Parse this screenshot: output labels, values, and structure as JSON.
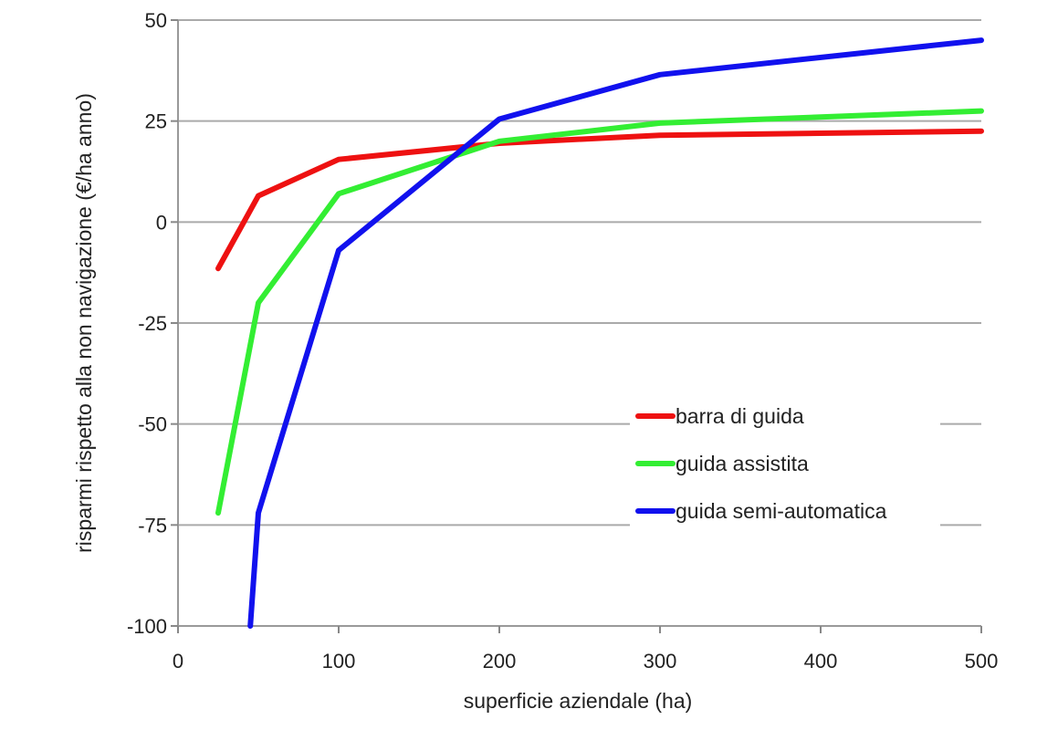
{
  "chart_data": {
    "type": "line",
    "xlabel": "superficie aziendale (ha)",
    "ylabel": "risparmi rispetto alla non navigazione (€/ha  anno)",
    "xlim": [
      0,
      500
    ],
    "ylim": [
      -100,
      50
    ],
    "xticks": [
      "0",
      "100",
      "200",
      "300",
      "400",
      "500"
    ],
    "yticks": [
      "50",
      "25",
      "0",
      "-25",
      "-50",
      "-75",
      "-100"
    ],
    "grid": "horizontal",
    "legend_position": "lower-right",
    "series": [
      {
        "name": "barra di guida",
        "color": "#ee1111",
        "points": [
          [
            25,
            -11.5
          ],
          [
            50,
            6.5
          ],
          [
            100,
            15.5
          ],
          [
            200,
            19.5
          ],
          [
            300,
            21.5
          ],
          [
            500,
            22.5
          ]
        ]
      },
      {
        "name": "guida assistita",
        "color": "#33ee33",
        "points": [
          [
            25,
            -72
          ],
          [
            50,
            -20
          ],
          [
            100,
            7
          ],
          [
            200,
            20
          ],
          [
            300,
            24.5
          ],
          [
            500,
            27.5
          ]
        ]
      },
      {
        "name": "guida semi-automatica",
        "color": "#1111ee",
        "points": [
          [
            45,
            -100
          ],
          [
            50,
            -72
          ],
          [
            100,
            -7
          ],
          [
            200,
            25.5
          ],
          [
            300,
            36.5
          ],
          [
            500,
            45
          ]
        ]
      }
    ]
  }
}
